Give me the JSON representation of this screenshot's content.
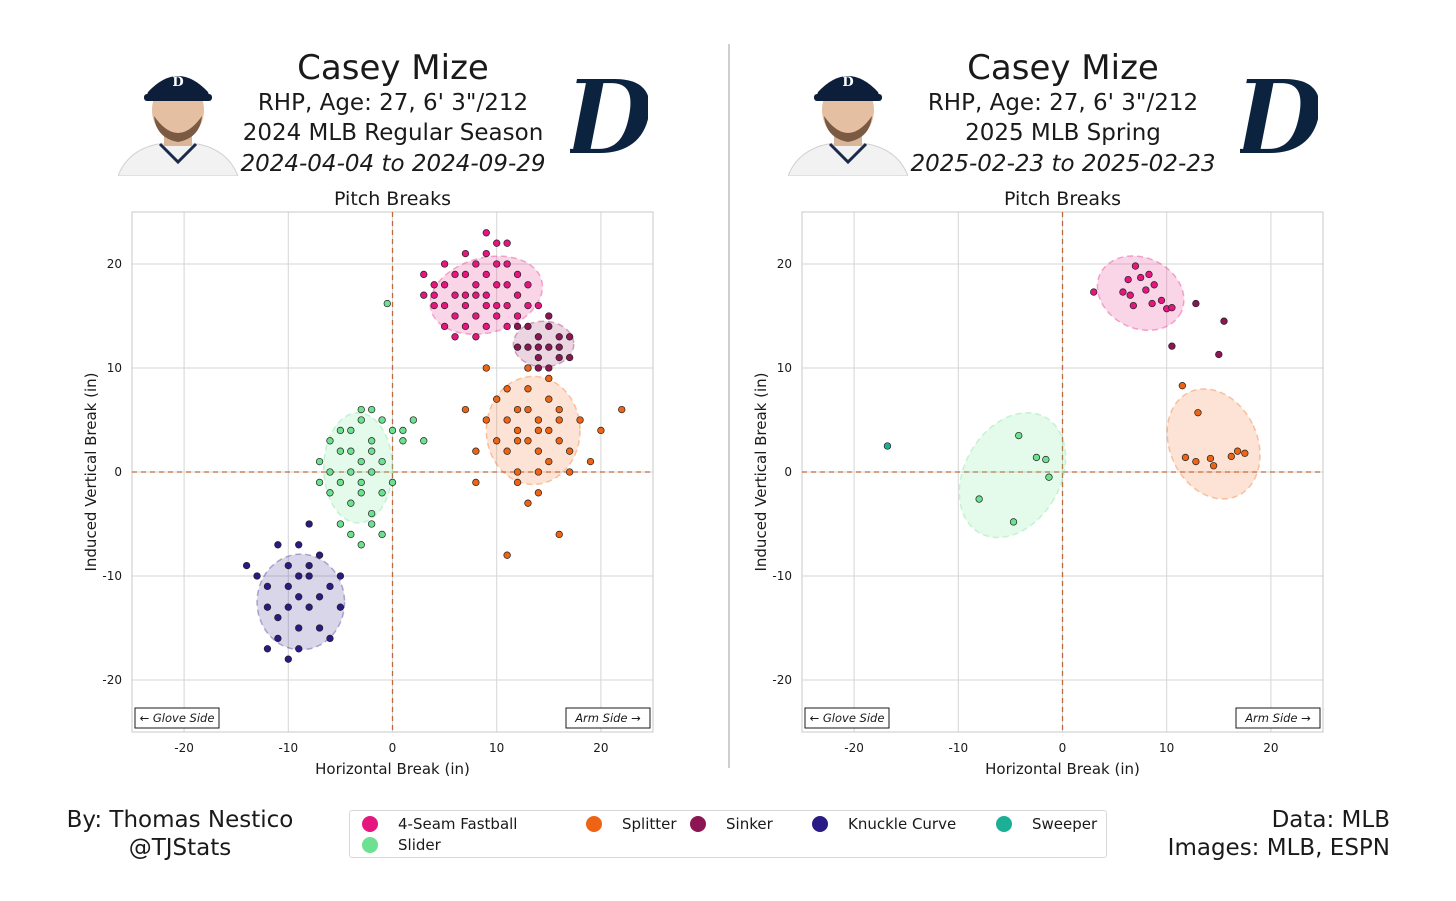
{
  "colors": {
    "4-Seam Fastball": "#e5177f",
    "Splitter": "#ee6414",
    "Sinker": "#8c1554",
    "Knuckle Curve": "#2a1a85",
    "Sweeper": "#1bb096",
    "Slider": "#6ce18f",
    "origin_line": "#c06a3c",
    "team_navy": "#0c2340"
  },
  "icons": [
    "player-headshot-image",
    "tigers-olde-english-d-logo"
  ],
  "panels": [
    {
      "title": "Casey Mize",
      "bio": "RHP, Age: 27, 6' 3\"/212",
      "season": "2024 MLB Regular Season",
      "dates": "2024-04-04 to 2024-09-29"
    },
    {
      "title": "Casey Mize",
      "bio": "RHP, Age: 27, 6' 3\"/212",
      "season": "2025 MLB Spring",
      "dates": "2025-02-23 to 2025-02-23"
    }
  ],
  "chart_data": [
    {
      "type": "scatter",
      "title": "Pitch Breaks",
      "xlabel": "Horizontal Break (in)",
      "ylabel": "Induced Vertical Break (in)",
      "xlim": [
        -25,
        25
      ],
      "ylim": [
        -25,
        25
      ],
      "xticks": [
        -20,
        -10,
        0,
        10,
        20
      ],
      "yticks": [
        -20,
        -10,
        0,
        10,
        20
      ],
      "grid": true,
      "annotations": [
        "← Glove Side",
        "Arm Side →"
      ],
      "series": [
        {
          "name": "4-Seam Fastball",
          "ellipse": {
            "cx": 9,
            "cy": 17,
            "rx": 5.5,
            "ry": 3.6,
            "angle": -15
          },
          "points": [
            [
              5,
              18
            ],
            [
              6,
              17
            ],
            [
              7,
              16
            ],
            [
              8,
              18
            ],
            [
              9,
              17
            ],
            [
              10,
              16
            ],
            [
              11,
              18
            ],
            [
              9,
              19
            ],
            [
              7,
              19
            ],
            [
              8,
              15
            ],
            [
              10,
              15
            ],
            [
              6,
              15
            ],
            [
              5,
              16
            ],
            [
              4,
              18
            ],
            [
              4,
              16
            ],
            [
              3,
              19
            ],
            [
              5,
              20
            ],
            [
              7,
              21
            ],
            [
              9,
              21
            ],
            [
              10,
              20
            ],
            [
              11,
              20
            ],
            [
              12,
              17
            ],
            [
              12,
              15
            ],
            [
              13,
              16
            ],
            [
              11,
              14
            ],
            [
              9,
              14
            ],
            [
              7,
              14
            ],
            [
              6,
              13
            ],
            [
              5,
              14
            ],
            [
              8,
              13
            ],
            [
              10,
              22
            ],
            [
              9,
              23
            ],
            [
              11,
              22
            ],
            [
              14,
              16
            ],
            [
              13,
              18
            ],
            [
              6,
              19
            ],
            [
              8,
              20
            ],
            [
              4,
              17
            ],
            [
              3,
              17
            ],
            [
              12,
              19
            ],
            [
              8,
              17
            ],
            [
              7,
              17
            ],
            [
              10,
              18
            ],
            [
              11,
              16
            ],
            [
              9,
              16
            ]
          ]
        },
        {
          "name": "Sinker",
          "ellipse": {
            "cx": 14.5,
            "cy": 12.3,
            "rx": 2.9,
            "ry": 2.2,
            "angle": 0
          },
          "points": [
            [
              13,
              12
            ],
            [
              14,
              13
            ],
            [
              15,
              12
            ],
            [
              16,
              11
            ],
            [
              14,
              11
            ],
            [
              13,
              14
            ],
            [
              15,
              14
            ],
            [
              17,
              13
            ],
            [
              16,
              13
            ],
            [
              12,
              12
            ],
            [
              13,
              10
            ],
            [
              15,
              10
            ],
            [
              17,
              11
            ],
            [
              14,
              12
            ],
            [
              16,
              12
            ],
            [
              12,
              14
            ],
            [
              15,
              15
            ],
            [
              14,
              10
            ]
          ]
        },
        {
          "name": "Splitter",
          "ellipse": {
            "cx": 13.5,
            "cy": 4,
            "rx": 4.5,
            "ry": 5.2,
            "angle": 0
          },
          "points": [
            [
              12,
              4
            ],
            [
              13,
              3
            ],
            [
              14,
              5
            ],
            [
              15,
              4
            ],
            [
              11,
              2
            ],
            [
              12,
              6
            ],
            [
              14,
              2
            ],
            [
              16,
              3
            ],
            [
              13,
              6
            ],
            [
              15,
              7
            ],
            [
              11,
              5
            ],
            [
              10,
              3
            ],
            [
              12,
              0
            ],
            [
              14,
              0
            ],
            [
              16,
              6
            ],
            [
              17,
              2
            ],
            [
              18,
              5
            ],
            [
              13,
              8
            ],
            [
              11,
              8
            ],
            [
              15,
              9
            ],
            [
              10,
              7
            ],
            [
              12,
              -1
            ],
            [
              14,
              -2
            ],
            [
              13,
              -3
            ],
            [
              17,
              0
            ],
            [
              9,
              5
            ],
            [
              8,
              2
            ],
            [
              8,
              -1
            ],
            [
              19,
              1
            ],
            [
              20,
              4
            ],
            [
              22,
              6
            ],
            [
              16,
              -6
            ],
            [
              11,
              -8
            ],
            [
              9,
              10
            ],
            [
              13,
              10
            ],
            [
              7,
              6
            ],
            [
              14,
              4
            ],
            [
              12,
              3
            ],
            [
              15,
              1
            ],
            [
              16,
              5
            ]
          ]
        },
        {
          "name": "Slider",
          "ellipse": {
            "cx": -3.3,
            "cy": 0.4,
            "rx": 3.3,
            "ry": 5.3,
            "angle": 0
          },
          "points": [
            [
              -3,
              1
            ],
            [
              -4,
              2
            ],
            [
              -2,
              0
            ],
            [
              -5,
              -1
            ],
            [
              -3,
              -2
            ],
            [
              -2,
              3
            ],
            [
              -4,
              4
            ],
            [
              -5,
              2
            ],
            [
              -6,
              0
            ],
            [
              -1,
              1
            ],
            [
              -3,
              5
            ],
            [
              -4,
              -3
            ],
            [
              -2,
              -4
            ],
            [
              -5,
              -5
            ],
            [
              -1,
              -2
            ],
            [
              -6,
              3
            ],
            [
              -7,
              1
            ],
            [
              -3,
              6
            ],
            [
              -2,
              6
            ],
            [
              0,
              4
            ],
            [
              1,
              3
            ],
            [
              -4,
              -6
            ],
            [
              -3,
              -7
            ],
            [
              -2,
              -5
            ],
            [
              -6,
              -2
            ],
            [
              -7,
              -1
            ],
            [
              0,
              -1
            ],
            [
              -1,
              5
            ],
            [
              2,
              5
            ],
            [
              3,
              3
            ],
            [
              1,
              4
            ],
            [
              -5,
              4
            ],
            [
              -2,
              2
            ],
            [
              -4,
              0
            ],
            [
              -3,
              -1
            ],
            [
              -1,
              -6
            ],
            [
              -0.5,
              16.2
            ]
          ]
        },
        {
          "name": "Knuckle Curve",
          "ellipse": {
            "cx": -8.8,
            "cy": -12.5,
            "rx": 4.2,
            "ry": 4.6,
            "angle": 0
          },
          "points": [
            [
              -9,
              -12
            ],
            [
              -8,
              -13
            ],
            [
              -10,
              -11
            ],
            [
              -7,
              -12
            ],
            [
              -11,
              -14
            ],
            [
              -9,
              -15
            ],
            [
              -8,
              -10
            ],
            [
              -10,
              -9
            ],
            [
              -12,
              -11
            ],
            [
              -6,
              -11
            ],
            [
              -7,
              -15
            ],
            [
              -11,
              -16
            ],
            [
              -9,
              -17
            ],
            [
              -8,
              -9
            ],
            [
              -12,
              -13
            ],
            [
              -13,
              -10
            ],
            [
              -5,
              -13
            ],
            [
              -6,
              -16
            ],
            [
              -10,
              -18
            ],
            [
              -12,
              -17
            ],
            [
              -14,
              -9
            ],
            [
              -9,
              -7
            ],
            [
              -5,
              -10
            ],
            [
              -8,
              -5
            ],
            [
              -11,
              -7
            ],
            [
              -7,
              -8
            ],
            [
              -10,
              -13
            ],
            [
              -9,
              -10
            ]
          ]
        }
      ]
    },
    {
      "type": "scatter",
      "title": "Pitch Breaks",
      "xlabel": "Horizontal Break (in)",
      "ylabel": "Induced Vertical Break (in)",
      "xlim": [
        -25,
        25
      ],
      "ylim": [
        -25,
        25
      ],
      "xticks": [
        -20,
        -10,
        0,
        10,
        20
      ],
      "yticks": [
        -20,
        -10,
        0,
        10,
        20
      ],
      "grid": true,
      "annotations": [
        "← Glove Side",
        "Arm Side →"
      ],
      "series": [
        {
          "name": "4-Seam Fastball",
          "ellipse": {
            "cx": 7.5,
            "cy": 17.2,
            "rx": 4.3,
            "ry": 3.4,
            "angle": 25
          },
          "points": [
            [
              3,
              17.3
            ],
            [
              5.8,
              17.3
            ],
            [
              6.3,
              18.5
            ],
            [
              6.5,
              17
            ],
            [
              7,
              19.8
            ],
            [
              7.5,
              18.7
            ],
            [
              8,
              17.5
            ],
            [
              8.3,
              19
            ],
            [
              8.8,
              18
            ],
            [
              9.5,
              16.5
            ],
            [
              10,
              15.7
            ],
            [
              6.8,
              16
            ],
            [
              8.6,
              16.2
            ],
            [
              10.5,
              15.8
            ]
          ]
        },
        {
          "name": "Sinker",
          "points": [
            [
              12.8,
              16.2
            ],
            [
              15.5,
              14.5
            ],
            [
              15,
              11.3
            ],
            [
              10.5,
              12.1
            ]
          ]
        },
        {
          "name": "Splitter",
          "ellipse": {
            "cx": 14.5,
            "cy": 2.7,
            "rx": 4.2,
            "ry": 5.5,
            "angle": -25
          },
          "points": [
            [
              11.5,
              8.3
            ],
            [
              13,
              5.7
            ],
            [
              11.8,
              1.4
            ],
            [
              12.8,
              1
            ],
            [
              14.2,
              1.3
            ],
            [
              14.5,
              0.6
            ],
            [
              16.2,
              1.5
            ],
            [
              16.8,
              2
            ],
            [
              17.5,
              1.8
            ]
          ]
        },
        {
          "name": "Slider",
          "ellipse": {
            "cx": -4.8,
            "cy": -0.3,
            "rx": 4.6,
            "ry": 6.4,
            "angle": 30
          },
          "points": [
            [
              -4.2,
              3.5
            ],
            [
              -2.5,
              1.4
            ],
            [
              -1.6,
              1.2
            ],
            [
              -8,
              -2.6
            ],
            [
              -1.3,
              -0.5
            ],
            [
              -4.7,
              -4.8
            ]
          ]
        },
        {
          "name": "Sweeper",
          "points": [
            [
              -16.8,
              2.5
            ]
          ]
        }
      ]
    }
  ],
  "credits": {
    "left_line1": "By: Thomas Nestico",
    "left_line2": "@TJStats",
    "right_line1": "Data: MLB",
    "right_line2": "Images: MLB, ESPN"
  },
  "legend": [
    "4-Seam Fastball",
    "Splitter",
    "Sinker",
    "Knuckle Curve",
    "Sweeper",
    "Slider"
  ]
}
